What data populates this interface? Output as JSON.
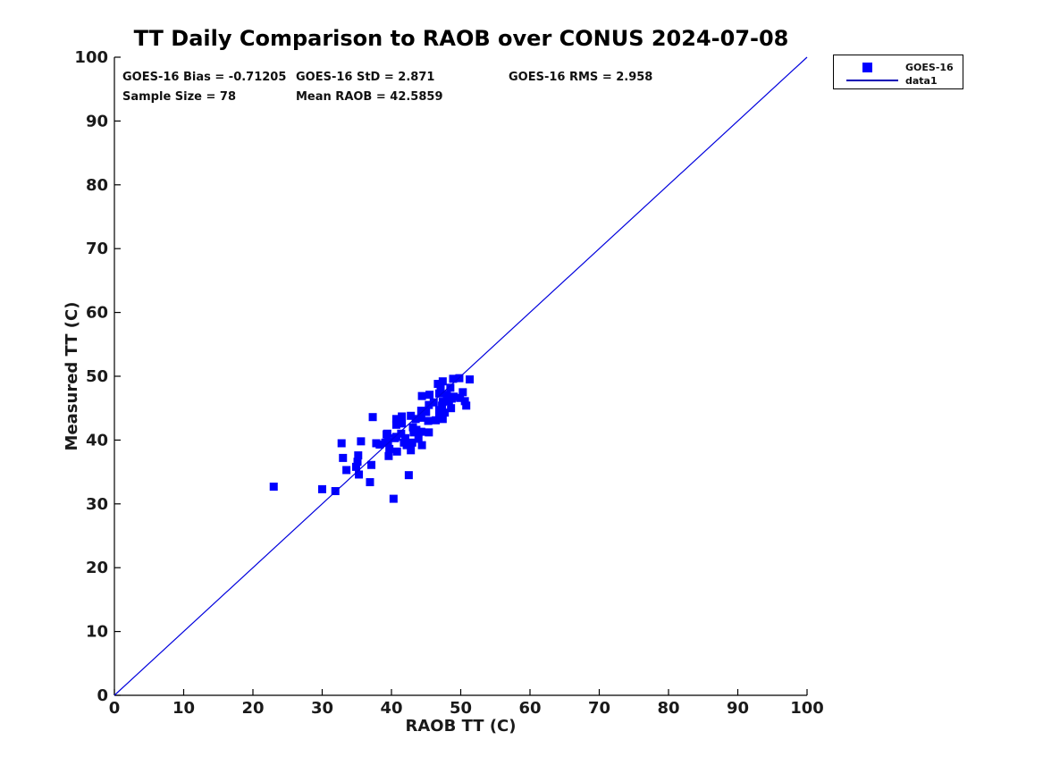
{
  "title": "TT Daily Comparison to RAOB over CONUS 2024-07-08",
  "stats": {
    "bias": "GOES-16 Bias = -0.71205",
    "std": "GOES-16 StD = 2.871",
    "rms": "GOES-16 RMS = 2.958",
    "sample_size": "Sample Size = 78",
    "mean_raob": "Mean RAOB = 42.5859"
  },
  "legend": {
    "entries": [
      {
        "label": "GOES-16",
        "marker": "square"
      },
      {
        "label": "data1",
        "marker": "line"
      }
    ]
  },
  "colors": {
    "marker": "#0000ff",
    "line": "#0000dd",
    "legend_line": "#0000b4",
    "axis": "#000000"
  },
  "chart_data": {
    "type": "scatter",
    "title": "TT Daily Comparison to RAOB over CONUS 2024-07-08",
    "xlabel": "RAOB TT (C)",
    "ylabel": "Measured TT (C)",
    "xlim": [
      0,
      100
    ],
    "ylim": [
      0,
      100
    ],
    "xticks": [
      0,
      10,
      20,
      30,
      40,
      50,
      60,
      70,
      80,
      90,
      100
    ],
    "yticks": [
      0,
      10,
      20,
      30,
      40,
      50,
      60,
      70,
      80,
      90,
      100
    ],
    "legend_position": "top-right-outside",
    "grid": false,
    "series": [
      {
        "name": "GOES-16",
        "type": "scatter",
        "marker": "square",
        "color": "#0000ff",
        "points": [
          [
            23.0,
            32.7
          ],
          [
            30.0,
            32.3
          ],
          [
            31.9,
            32.0
          ],
          [
            40.3,
            30.8
          ],
          [
            42.5,
            34.5
          ],
          [
            36.9,
            33.4
          ],
          [
            35.3,
            34.6
          ],
          [
            33.5,
            35.3
          ],
          [
            34.9,
            35.8
          ],
          [
            33.0,
            37.2
          ],
          [
            32.8,
            39.5
          ],
          [
            35.6,
            39.8
          ],
          [
            35.2,
            37.6
          ],
          [
            35.1,
            36.6
          ],
          [
            37.1,
            36.1
          ],
          [
            37.3,
            43.6
          ],
          [
            37.8,
            39.5
          ],
          [
            38.3,
            39.3
          ],
          [
            39.1,
            39.6
          ],
          [
            39.3,
            40.9
          ],
          [
            39.5,
            39.7
          ],
          [
            39.7,
            38.6
          ],
          [
            39.6,
            37.5
          ],
          [
            40.8,
            38.2
          ],
          [
            40.5,
            40.3
          ],
          [
            41.4,
            41.0
          ],
          [
            42.0,
            40.3
          ],
          [
            42.2,
            39.2
          ],
          [
            43.0,
            39.6
          ],
          [
            42.8,
            38.4
          ],
          [
            43.2,
            41.2
          ],
          [
            39.4,
            41.0
          ],
          [
            40.7,
            40.5
          ],
          [
            41.8,
            39.6
          ],
          [
            44.4,
            39.2
          ],
          [
            43.9,
            40.2
          ],
          [
            44.3,
            41.3
          ],
          [
            45.4,
            41.2
          ],
          [
            43.1,
            42.0
          ],
          [
            43.6,
            41.6
          ],
          [
            40.7,
            42.4
          ],
          [
            41.5,
            42.6
          ],
          [
            41.5,
            43.7
          ],
          [
            40.7,
            43.3
          ],
          [
            42.8,
            43.8
          ],
          [
            45.4,
            45.5
          ],
          [
            43.5,
            43.3
          ],
          [
            44.3,
            43.5
          ],
          [
            44.3,
            44.6
          ],
          [
            45.0,
            44.4
          ],
          [
            45.3,
            43.0
          ],
          [
            46.4,
            43.1
          ],
          [
            46.9,
            44.7
          ],
          [
            47.7,
            44.3
          ],
          [
            48.6,
            45.0
          ],
          [
            47.4,
            43.3
          ],
          [
            46.9,
            43.8
          ],
          [
            44.4,
            46.9
          ],
          [
            45.5,
            47.1
          ],
          [
            46.7,
            48.8
          ],
          [
            47.4,
            49.2
          ],
          [
            48.5,
            48.2
          ],
          [
            48.9,
            49.6
          ],
          [
            49.8,
            49.7
          ],
          [
            51.3,
            49.5
          ],
          [
            50.3,
            47.5
          ],
          [
            50.6,
            46.1
          ],
          [
            48.0,
            47.1
          ],
          [
            49.0,
            46.8
          ],
          [
            48.3,
            46.1
          ],
          [
            47.4,
            46.0
          ],
          [
            46.9,
            47.3
          ],
          [
            46.1,
            45.9
          ],
          [
            47.1,
            48.0
          ],
          [
            48.7,
            46.5
          ],
          [
            49.9,
            46.6
          ],
          [
            47.3,
            45.4
          ],
          [
            50.8,
            45.4
          ]
        ]
      },
      {
        "name": "data1",
        "type": "line",
        "color": "#0000dd",
        "points": [
          [
            0,
            0
          ],
          [
            100,
            100
          ]
        ]
      }
    ]
  }
}
